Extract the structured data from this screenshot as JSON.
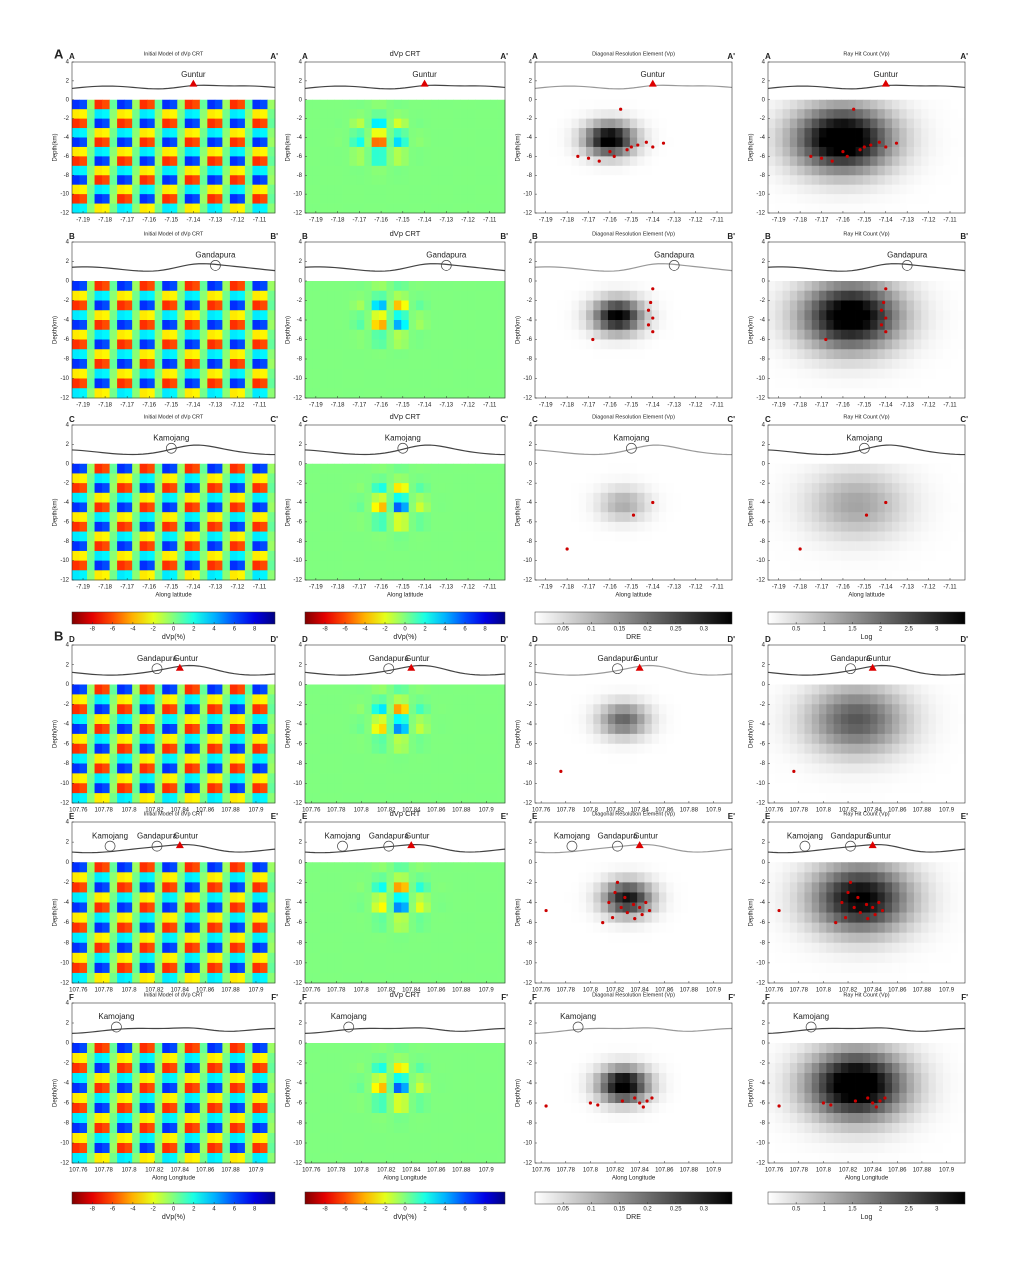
{
  "section_labels": [
    "A",
    "B"
  ],
  "depth_label": "Depth(km)",
  "depth_lim": [
    -12,
    4
  ],
  "depth_ticks": [
    4,
    2,
    0,
    -2,
    -4,
    -6,
    -8,
    -10,
    -12
  ],
  "latitude": {
    "label": "Along latitude",
    "lim": [
      -7.195,
      -7.103
    ],
    "ticks": [
      -7.19,
      -7.18,
      -7.17,
      -7.16,
      -7.15,
      -7.14,
      -7.13,
      -7.12,
      -7.11
    ]
  },
  "longitude": {
    "label": "Along Longitude",
    "lim": [
      107.755,
      107.915
    ],
    "ticks": [
      107.76,
      107.78,
      107.8,
      107.82,
      107.84,
      107.86,
      107.88,
      107.9
    ]
  },
  "rows": [
    {
      "left": "A",
      "right": "A'",
      "axis": "latitude",
      "titles": [
        "Initial Model of dVp CRT",
        "dVp CRT",
        "Diagonal Resolution Element (Vp)",
        "Ray Hit Count (Vp)"
      ],
      "stations": [
        {
          "name": "Guntur",
          "type": "triangle",
          "x": -7.14
        }
      ],
      "events": [
        [
          -7.155,
          -1
        ],
        [
          -7.16,
          -5.5
        ],
        [
          -7.158,
          -6
        ],
        [
          -7.165,
          -6.5
        ],
        [
          -7.17,
          -6.2
        ],
        [
          -7.15,
          -5
        ],
        [
          -7.147,
          -4.8
        ],
        [
          -7.143,
          -4.5
        ],
        [
          -7.14,
          -5
        ],
        [
          -7.152,
          -5.3
        ],
        [
          -7.135,
          -4.6
        ],
        [
          -7.175,
          -6
        ]
      ]
    },
    {
      "left": "B",
      "right": "B'",
      "axis": "latitude",
      "titles": [
        "Initial Model of dVp CRT",
        "dVp CRT",
        "Diagonal Resolution Element (Vp)",
        "Ray Hit Count (Vp)"
      ],
      "stations": [
        {
          "name": "Gandapura",
          "type": "circle",
          "x": -7.13
        }
      ],
      "events": [
        [
          -7.14,
          -0.8
        ],
        [
          -7.141,
          -2.2
        ],
        [
          -7.142,
          -3
        ],
        [
          -7.14,
          -3.8
        ],
        [
          -7.142,
          -4.5
        ],
        [
          -7.14,
          -5.2
        ],
        [
          -7.168,
          -6
        ]
      ]
    },
    {
      "left": "C",
      "right": "C'",
      "axis": "latitude",
      "titles": [
        "Initial Model of dVp CRT",
        "dVp CRT",
        "Diagonal Resolution Element (Vp)",
        "Ray Hit Count (Vp)"
      ],
      "stations": [
        {
          "name": "Kamojang",
          "type": "circle",
          "x": -7.15
        }
      ],
      "events": [
        [
          -7.18,
          -8.8
        ],
        [
          -7.149,
          -5.3
        ],
        [
          -7.14,
          -4
        ]
      ]
    },
    {
      "left": "D",
      "right": "D'",
      "axis": "longitude",
      "stations": [
        {
          "name": "Gandapura",
          "type": "circle",
          "x": 107.822
        },
        {
          "name": "Guntur",
          "type": "triangle",
          "x": 107.84
        }
      ],
      "events": [
        [
          107.776,
          -8.8
        ]
      ]
    },
    {
      "left": "E",
      "right": "E'",
      "axis": "longitude",
      "titles": [
        "Initial Model of dVp CRT",
        "dVp CRT",
        "Diagonal Resolution Element (Vp)",
        "Ray Hit Count (Vp)"
      ],
      "stations": [
        {
          "name": "Kamojang",
          "type": "circle",
          "x": 107.785
        },
        {
          "name": "Gandapura",
          "type": "circle",
          "x": 107.822
        },
        {
          "name": "Guntur",
          "type": "triangle",
          "x": 107.84
        }
      ],
      "events": [
        [
          107.764,
          -4.8
        ],
        [
          107.81,
          -6
        ],
        [
          107.815,
          -4
        ],
        [
          107.82,
          -3
        ],
        [
          107.822,
          -2
        ],
        [
          107.825,
          -4.5
        ],
        [
          107.83,
          -5
        ],
        [
          107.835,
          -4.2
        ],
        [
          107.84,
          -4.5
        ],
        [
          107.842,
          -5.2
        ],
        [
          107.845,
          -4
        ],
        [
          107.828,
          -3.5
        ],
        [
          107.818,
          -5.5
        ],
        [
          107.836,
          -5.6
        ],
        [
          107.848,
          -4.8
        ]
      ]
    },
    {
      "left": "F",
      "right": "F'",
      "axis": "longitude",
      "titles": [
        "Initial Model of dVp CRT",
        "dVp CRT",
        "Diagonal Resolution Element (Vp)",
        "Ray Hit Count (Vp)"
      ],
      "stations": [
        {
          "name": "Kamojang",
          "type": "circle",
          "x": 107.79
        }
      ],
      "events": [
        [
          107.764,
          -6.3
        ],
        [
          107.8,
          -6
        ],
        [
          107.806,
          -6.2
        ],
        [
          107.836,
          -5.5
        ],
        [
          107.84,
          -6
        ],
        [
          107.843,
          -6.4
        ],
        [
          107.846,
          -5.8
        ],
        [
          107.85,
          -5.5
        ],
        [
          107.826,
          -5.8
        ]
      ]
    }
  ],
  "colorbars": [
    {
      "label": "dVp(%)",
      "map": "jet",
      "lim": [
        -10,
        10
      ],
      "ticks": [
        -8,
        -6,
        -4,
        -2,
        0,
        2,
        4,
        6,
        8
      ]
    },
    {
      "label": "DRE",
      "map": "gray",
      "lim": [
        0,
        0.35
      ],
      "ticks": [
        0.05,
        0.1,
        0.15,
        0.2,
        0.25,
        0.3
      ]
    },
    {
      "label": "Log",
      "map": "gray",
      "lim": [
        0,
        3.5
      ],
      "ticks": [
        0.5,
        1,
        1.5,
        2,
        2.5,
        3
      ]
    }
  ]
}
